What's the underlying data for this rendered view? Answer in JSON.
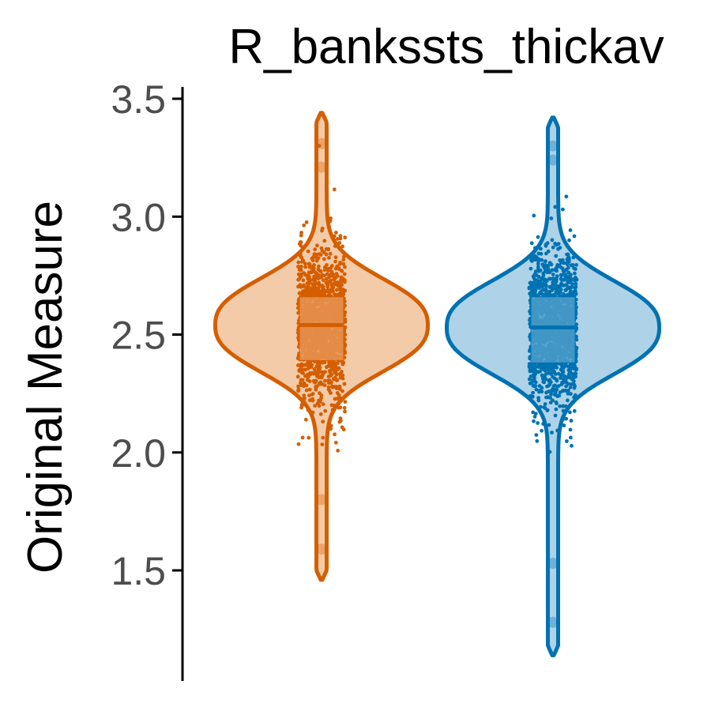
{
  "chart_data": {
    "type": "violin",
    "title": "R_bankssts_thickav",
    "xlabel": "",
    "ylabel": "Original Measure",
    "ylim": [
      1.15,
      3.55
    ],
    "yticks": [
      1.5,
      2.0,
      2.5,
      3.0,
      3.5
    ],
    "ytick_labels": [
      "1.5",
      "2.0",
      "2.5",
      "3.0",
      "3.5"
    ],
    "grid": false,
    "legend": "none",
    "series": [
      {
        "color": "#d55e00",
        "fill": "#f3cba9",
        "box_fill": "#e69352",
        "min": 1.46,
        "max": 3.44,
        "q1": 2.39,
        "median": 2.54,
        "q3": 2.66,
        "outliers": [
          1.59,
          1.8,
          3.21,
          3.31
        ]
      },
      {
        "color": "#0072b2",
        "fill": "#aed2e8",
        "box_fill": "#4b9dc9",
        "min": 1.14,
        "max": 3.42,
        "q1": 2.38,
        "median": 2.53,
        "q3": 2.66,
        "outliers": [
          1.28,
          1.53,
          3.24,
          3.3
        ]
      }
    ]
  }
}
